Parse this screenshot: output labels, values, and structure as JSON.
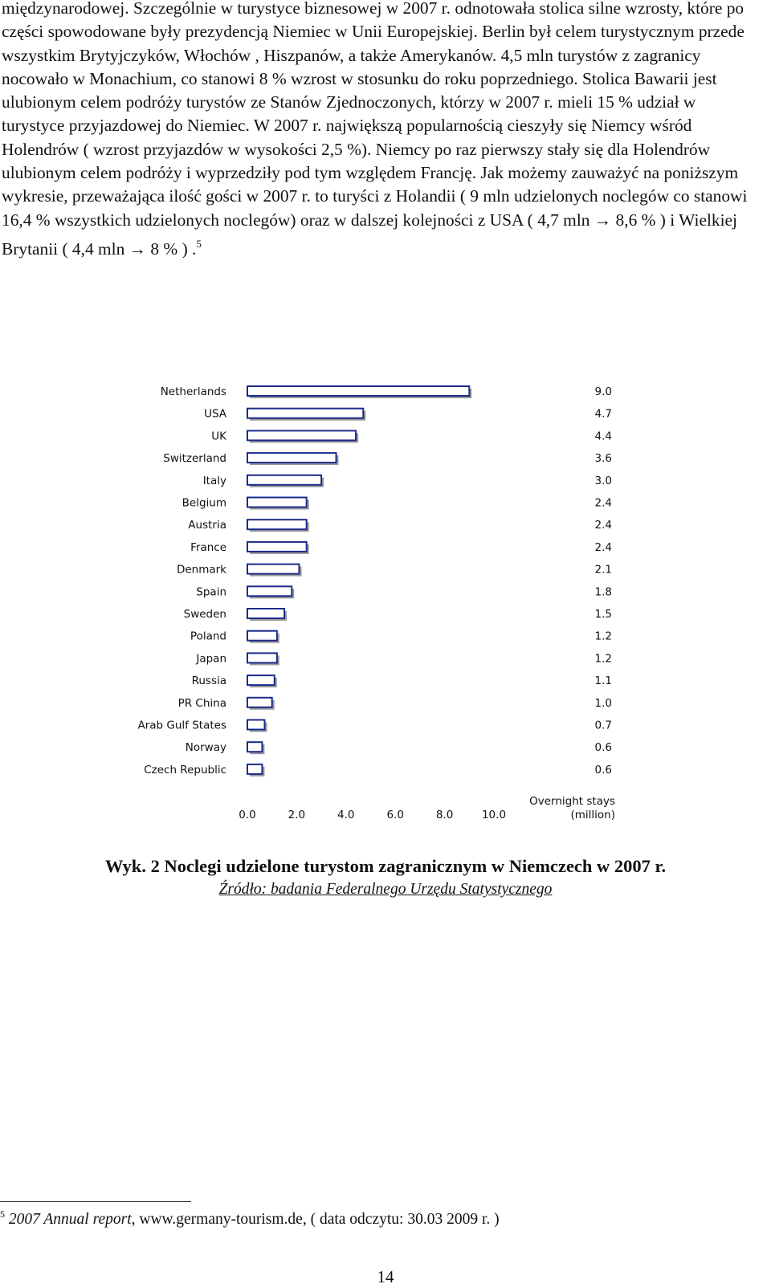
{
  "body_text": {
    "main": "międzynarodowej. Szczególnie w turystyce biznesowej w 2007 r. odnotowała stolica silne wzrosty, które po części spowodowane były prezydencją Niemiec w Unii Europejskiej. Berlin był celem turystycznym przede wszystkim Brytyjczyków, Włochów , Hiszpanów, a także Amerykanów. 4,5 mln turystów z zagranicy nocowało w Monachium, co stanowi 8 % wzrost w stosunku do roku poprzedniego. Stolica Bawarii jest ulubionym celem podróży turystów ze Stanów Zjednoczonych, którzy w 2007 r. mieli 15 % udział w turystyce przyjazdowej do Niemiec. W 2007 r. największą popularnością cieszyły się Niemcy wśród Holendrów ( wzrost przyjazdów w wysokości 2,5 %). Niemcy po raz pierwszy stały się dla Holendrów ulubionym celem podróży i wyprzedziły pod tym względem Francję. Jak możemy zauważyć na poniższym wykresie, przeważająca ilość gości w 2007 r. to turyści z Holandii ( 9 mln udzielonych noclegów co stanowi 16,4 % wszystkich udzielonych noclegów) oraz w dalszej kolejności z USA ( 4,7 mln → 8,6 % ) i Wielkiej Brytanii ( 4,4 mln → 8 % ) .",
    "footnote_ref": "5"
  },
  "chart_data": {
    "type": "bar",
    "orientation": "horizontal",
    "categories": [
      "Netherlands",
      "USA",
      "UK",
      "Switzerland",
      "Italy",
      "Belgium",
      "Austria",
      "France",
      "Denmark",
      "Spain",
      "Sweden",
      "Poland",
      "Japan",
      "Russia",
      "PR China",
      "Arab Gulf States",
      "Norway",
      "Czech Republic"
    ],
    "values": [
      9.0,
      4.7,
      4.4,
      3.6,
      3.0,
      2.4,
      2.4,
      2.4,
      2.1,
      1.8,
      1.5,
      1.2,
      1.2,
      1.1,
      1.0,
      0.7,
      0.6,
      0.6
    ],
    "value_labels": [
      "9.0",
      "4.7",
      "4.4",
      "3.6",
      "3.0",
      "2.4",
      "2.4",
      "2.4",
      "2.1",
      "1.8",
      "1.5",
      "1.2",
      "1.2",
      "1.1",
      "1.0",
      "0.7",
      "0.6",
      "0.6"
    ],
    "x_ticks": [
      "0.0",
      "2.0",
      "4.0",
      "6.0",
      "8.0",
      "10.0"
    ],
    "x_tick_values": [
      0,
      2,
      4,
      6,
      8,
      10
    ],
    "xlim": [
      0,
      10
    ],
    "xlabel_line1": "Overnight stays",
    "xlabel_line2": "(million)",
    "grid": false,
    "colors": {
      "bar_fill": "#ffffff",
      "bar_stroke": "#1a2a8a",
      "bar_shadow": "#9a9a9a",
      "text": "#111111"
    }
  },
  "caption": {
    "title": "Wyk. 2 Noclegi udzielone turystom zagranicznym w Niemczech w 2007 r.",
    "source": "Źródło: badania Federalnego Urzędu Statystycznego"
  },
  "footnote": {
    "number": "5",
    "title_italic": "2007 Annual report",
    "rest": ", www.germany-tourism.de, ( data odczytu: 30.03 2009 r. )"
  },
  "page_number": "14"
}
